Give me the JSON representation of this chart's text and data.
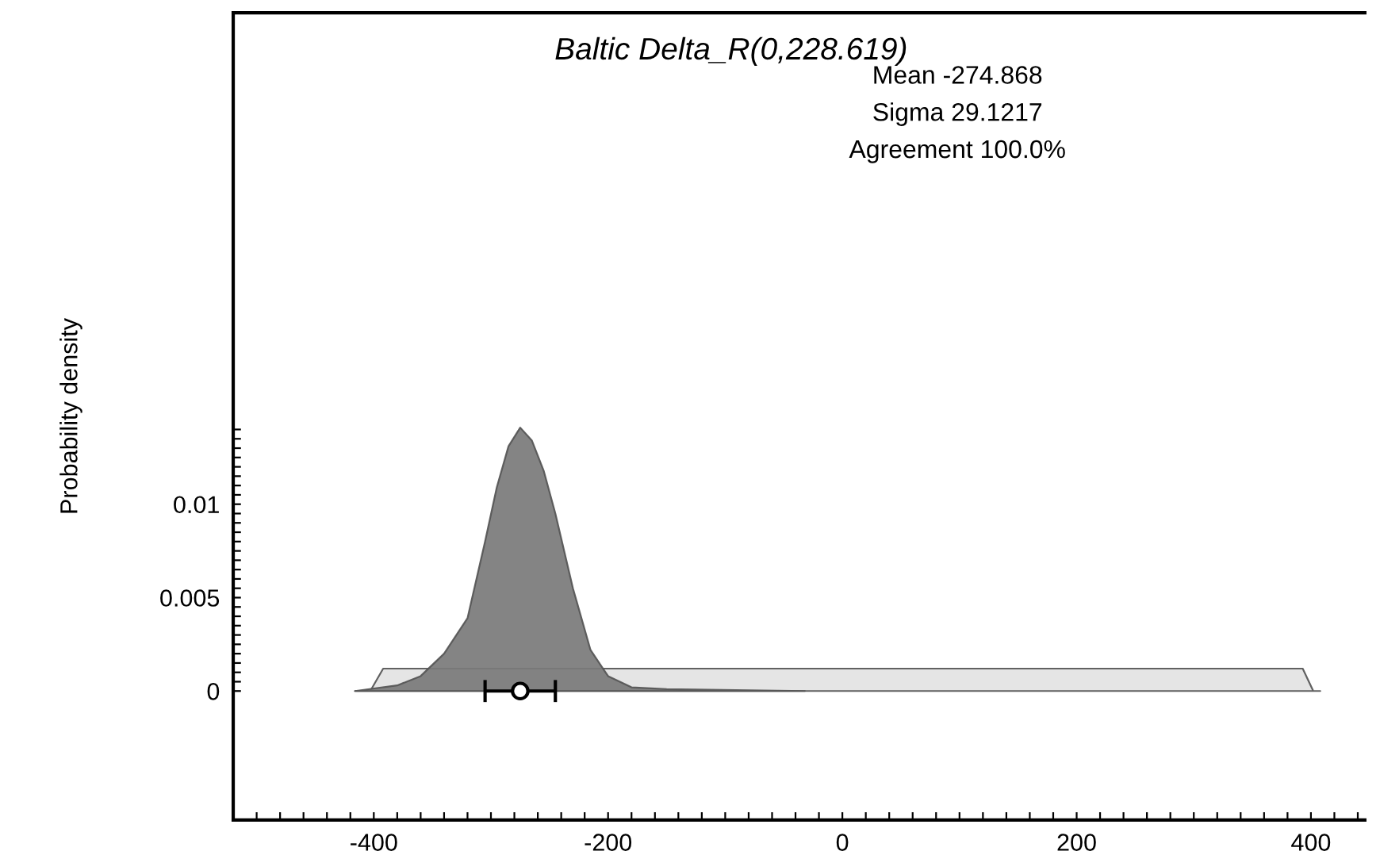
{
  "chart_data": {
    "type": "area",
    "title": "Baltic Delta_R(0,228.619)",
    "ylabel": "Probability density",
    "annotations": [
      "Mean -274.868",
      "Sigma 29.1217",
      "Agreement 100.0%"
    ],
    "xlim": [
      -520,
      446
    ],
    "ylim": [
      -0.0069,
      0.0363
    ],
    "xticks": [
      {
        "value": -500,
        "label": null
      },
      {
        "value": -480,
        "label": null
      },
      {
        "value": -460,
        "label": null
      },
      {
        "value": -440,
        "label": null
      },
      {
        "value": -420,
        "label": null
      },
      -400,
      {
        "value": -380,
        "label": null
      },
      {
        "value": -360,
        "label": null
      },
      {
        "value": -340,
        "label": null
      },
      {
        "value": -320,
        "label": null
      },
      {
        "value": -300,
        "label": null
      },
      {
        "value": -280,
        "label": null
      },
      {
        "value": -260,
        "label": null
      },
      {
        "value": -240,
        "label": null
      },
      {
        "value": -220,
        "label": null
      },
      -200,
      {
        "value": -180,
        "label": null
      },
      {
        "value": -160,
        "label": null
      },
      {
        "value": -140,
        "label": null
      },
      {
        "value": -120,
        "label": null
      },
      {
        "value": -100,
        "label": null
      },
      {
        "value": -80,
        "label": null
      },
      {
        "value": -60,
        "label": null
      },
      {
        "value": -40,
        "label": null
      },
      {
        "value": -20,
        "label": null
      },
      0,
      {
        "value": 20,
        "label": null
      },
      {
        "value": 40,
        "label": null
      },
      {
        "value": 60,
        "label": null
      },
      {
        "value": 80,
        "label": null
      },
      {
        "value": 100,
        "label": null
      },
      {
        "value": 120,
        "label": null
      },
      {
        "value": 140,
        "label": null
      },
      {
        "value": 160,
        "label": null
      },
      {
        "value": 180,
        "label": null
      },
      200,
      {
        "value": 220,
        "label": null
      },
      {
        "value": 240,
        "label": null
      },
      {
        "value": 260,
        "label": null
      },
      {
        "value": 280,
        "label": null
      },
      {
        "value": 300,
        "label": null
      },
      {
        "value": 320,
        "label": null
      },
      {
        "value": 340,
        "label": null
      },
      {
        "value": 360,
        "label": null
      },
      {
        "value": 380,
        "label": null
      },
      400,
      {
        "value": 420,
        "label": null
      },
      {
        "value": 440,
        "label": null
      }
    ],
    "yticks": [
      0,
      {
        "value": 0.0005,
        "label": null
      },
      {
        "value": 0.001,
        "label": null
      },
      {
        "value": 0.0015,
        "label": null
      },
      {
        "value": 0.002,
        "label": null
      },
      {
        "value": 0.0025,
        "label": null
      },
      {
        "value": 0.003,
        "label": null
      },
      {
        "value": 0.0035,
        "label": null
      },
      {
        "value": 0.004,
        "label": null
      },
      {
        "value": 0.0045,
        "label": null
      },
      0.005,
      {
        "value": 0.0055,
        "label": null
      },
      {
        "value": 0.006,
        "label": null
      },
      {
        "value": 0.0065,
        "label": null
      },
      {
        "value": 0.007,
        "label": null
      },
      {
        "value": 0.0075,
        "label": null
      },
      {
        "value": 0.008,
        "label": null
      },
      {
        "value": 0.0085,
        "label": null
      },
      {
        "value": 0.009,
        "label": null
      },
      {
        "value": 0.0095,
        "label": null
      },
      0.01,
      {
        "value": 0.0105,
        "label": null
      },
      {
        "value": 0.011,
        "label": null
      },
      {
        "value": 0.0115,
        "label": null
      },
      {
        "value": 0.012,
        "label": null
      },
      {
        "value": 0.0125,
        "label": null
      },
      {
        "value": 0.013,
        "label": null
      },
      {
        "value": 0.0135,
        "label": null
      },
      {
        "value": 0.014,
        "label": null
      }
    ],
    "grid": false,
    "series": [
      {
        "color": "#e3e3e3",
        "x": [
          -416,
          -403,
          -392,
          393,
          402,
          408
        ],
        "values": [
          0,
          0,
          0.0012,
          0.0012,
          0,
          0
        ]
      },
      {
        "color": "#7a7a7a",
        "x": [
          -416,
          -380,
          -360,
          -340,
          -320,
          -305,
          -295,
          -285,
          -275,
          -265,
          -255,
          -245,
          -230,
          -215,
          -200,
          -180,
          -150,
          -32
        ],
        "values": [
          0,
          0.0003,
          0.0008,
          0.002,
          0.0039,
          0.008,
          0.0109,
          0.0131,
          0.0141,
          0.0134,
          0.0118,
          0.0095,
          0.0055,
          0.0022,
          0.0008,
          0.0002,
          0.0001,
          0
        ]
      },
      {
        "type": "scatter",
        "color": "#ffffff",
        "marker": "circle",
        "x": [
          -275
        ],
        "values": [
          0
        ],
        "xerrors": [
          [
            -305,
            -245
          ]
        ]
      }
    ]
  }
}
